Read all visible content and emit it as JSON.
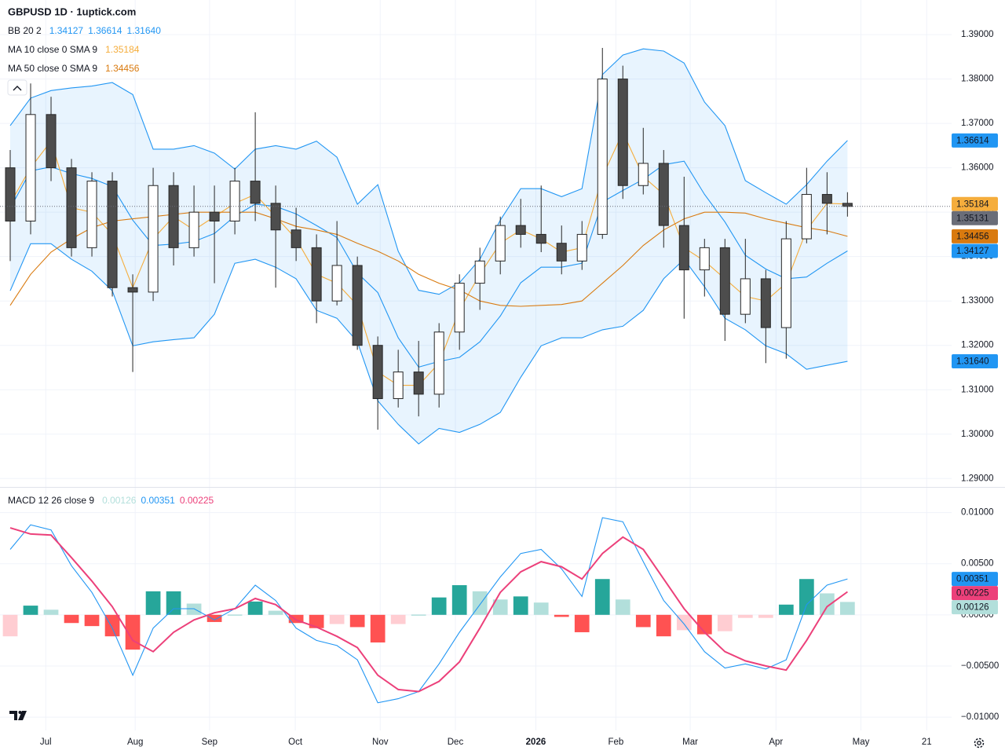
{
  "header": {
    "title": "GBPUSD 1D · 1uptick.com"
  },
  "chart_data": [
    {
      "type": "candlestick",
      "x": [
        2.5,
        7.5,
        12.5,
        17.5,
        22.5,
        27.5,
        32.5,
        37.5,
        42.5,
        47.5,
        52.5,
        57.5,
        62.5,
        67.5,
        72.5,
        77.5,
        82.5,
        87.5,
        92.5,
        97.5,
        102.5,
        107.5,
        112.5,
        117.5,
        122.5,
        127.5,
        132.5,
        137.5,
        142.5,
        147.5,
        152.5,
        157.5,
        162.5,
        167.5,
        172.5,
        177.5,
        182.5,
        187.5,
        192.5,
        197.5,
        202.5,
        207.5
      ],
      "xlim": [
        0,
        233
      ],
      "ylim": [
        1.2881,
        1.3978
      ],
      "yticks": [
        {
          "value": 1.29,
          "label": "1.29000"
        },
        {
          "value": 1.3,
          "label": "1.30000"
        },
        {
          "value": 1.31,
          "label": "1.31000"
        },
        {
          "value": 1.32,
          "label": "1.32000"
        },
        {
          "value": 1.33,
          "label": "1.33000"
        },
        {
          "value": 1.34,
          "label": "1.34000"
        },
        {
          "value": 1.35,
          "label": "1.35000"
        },
        {
          "value": 1.36,
          "label": "1.36000"
        },
        {
          "value": 1.37,
          "label": "1.37000"
        },
        {
          "value": 1.38,
          "label": "1.38000"
        },
        {
          "value": 1.39,
          "label": "1.39000"
        }
      ],
      "grid": true,
      "candles": {
        "open": [
          1.36,
          1.348,
          1.372,
          1.36,
          1.342,
          1.357,
          1.333,
          1.332,
          1.356,
          1.342,
          1.35,
          1.348,
          1.357,
          1.352,
          1.346,
          1.342,
          1.33,
          1.338,
          1.32,
          1.308,
          1.314,
          1.309,
          1.323,
          1.334,
          1.339,
          1.347,
          1.345,
          1.343,
          1.339,
          1.345,
          1.38,
          1.356,
          1.361,
          1.347,
          1.337,
          1.342,
          1.327,
          1.335,
          1.324,
          1.344,
          1.354,
          1.352
        ],
        "high": [
          1.364,
          1.379,
          1.376,
          1.362,
          1.359,
          1.359,
          1.336,
          1.36,
          1.359,
          1.356,
          1.356,
          1.36,
          1.3725,
          1.356,
          1.351,
          1.345,
          1.348,
          1.34,
          1.322,
          1.319,
          1.321,
          1.325,
          1.336,
          1.342,
          1.349,
          1.353,
          1.356,
          1.347,
          1.348,
          1.387,
          1.383,
          1.369,
          1.364,
          1.358,
          1.344,
          1.344,
          1.344,
          1.337,
          1.348,
          1.36,
          1.359,
          1.3545
        ],
        "low": [
          1.339,
          1.345,
          1.357,
          1.34,
          1.34,
          1.331,
          1.314,
          1.33,
          1.338,
          1.34,
          1.334,
          1.345,
          1.348,
          1.333,
          1.339,
          1.325,
          1.329,
          1.319,
          1.301,
          1.306,
          1.304,
          1.306,
          1.319,
          1.328,
          1.336,
          1.342,
          1.341,
          1.336,
          1.337,
          1.344,
          1.353,
          1.354,
          1.342,
          1.326,
          1.331,
          1.321,
          1.325,
          1.316,
          1.317,
          1.343,
          1.345,
          1.349
        ],
        "close": [
          1.348,
          1.372,
          1.36,
          1.342,
          1.357,
          1.333,
          1.332,
          1.356,
          1.342,
          1.35,
          1.348,
          1.357,
          1.352,
          1.346,
          1.342,
          1.33,
          1.338,
          1.32,
          1.308,
          1.314,
          1.309,
          1.323,
          1.334,
          1.339,
          1.347,
          1.345,
          1.343,
          1.339,
          1.345,
          1.38,
          1.356,
          1.361,
          1.347,
          1.337,
          1.342,
          1.327,
          1.335,
          1.324,
          1.344,
          1.354,
          1.352,
          1.35131
        ],
        "last_label": "1.35131",
        "up_color": "#ffffff",
        "down_color": "#4d4d4d",
        "outline": "#262626",
        "tag_color": "#6a6d78"
      },
      "series": [
        {
          "name": "BB 20 2",
          "color": "#2196f3",
          "fill": "#2196f3",
          "fill_between": [
            1,
            2
          ],
          "lines": [
            {
              "values": [
                1.3509,
                1.3593,
                1.3602,
                1.3587,
                1.3576,
                1.3558,
                1.3482,
                1.3425,
                1.3428,
                1.3434,
                1.3452,
                1.3491,
                1.3518,
                1.3513,
                1.3496,
                1.347,
                1.3443,
                1.3363,
                1.3319,
                1.3217,
                1.3151,
                1.3164,
                1.3173,
                1.3208,
                1.3266,
                1.3341,
                1.3376,
                1.3376,
                1.3385,
                1.3523,
                1.3549,
                1.3574,
                1.3607,
                1.3615,
                1.354,
                1.3478,
                1.3403,
                1.3372,
                1.335,
                1.3354,
                1.3385,
                1.34127
              ],
              "last_label": "1.34127"
            },
            {
              "values": [
                1.3695,
                1.3757,
                1.3774,
                1.378,
                1.3784,
                1.3792,
                1.3765,
                1.3642,
                1.3642,
                1.365,
                1.3633,
                1.3597,
                1.3642,
                1.365,
                1.3642,
                1.366,
                1.3624,
                1.3518,
                1.3562,
                1.3412,
                1.3324,
                1.3315,
                1.3341,
                1.3394,
                1.3482,
                1.3553,
                1.3553,
                1.3535,
                1.3553,
                1.381,
                1.3854,
                1.3868,
                1.3863,
                1.3836,
                1.3748,
                1.3695,
                1.3571,
                1.3544,
                1.3518,
                1.3562,
                1.3615,
                1.36614
              ],
              "last_label": "1.36614"
            },
            {
              "values": [
                1.3323,
                1.3429,
                1.3429,
                1.3394,
                1.3367,
                1.3323,
                1.3199,
                1.3208,
                1.3213,
                1.3217,
                1.327,
                1.3385,
                1.3394,
                1.3376,
                1.335,
                1.3279,
                1.3261,
                1.3208,
                1.3075,
                1.3022,
                1.2978,
                1.3013,
                1.3004,
                1.3022,
                1.3049,
                1.3128,
                1.3199,
                1.3217,
                1.3217,
                1.3235,
                1.3243,
                1.3279,
                1.335,
                1.3394,
                1.3332,
                1.3261,
                1.3235,
                1.3199,
                1.3181,
                1.3146,
                1.3155,
                1.3164
              ],
              "last_label": "1.31640"
            }
          ]
        },
        {
          "name": "MA 10 close 0 SMA 9",
          "color": "#f5ad3c",
          "lines": [
            {
              "values": [
                1.352,
                1.36,
                1.366,
                1.351,
                1.35,
                1.345,
                1.333,
                1.344,
                1.349,
                1.346,
                1.349,
                1.352,
                1.354,
                1.349,
                1.344,
                1.336,
                1.334,
                1.329,
                1.314,
                1.311,
                1.311,
                1.316,
                1.328,
                1.336,
                1.343,
                1.346,
                1.344,
                1.341,
                1.342,
                1.358,
                1.368,
                1.358,
                1.354,
                1.342,
                1.339,
                1.335,
                1.331,
                1.33,
                1.334,
                1.346,
                1.352,
                1.35184
              ],
              "last_label": "1.35184"
            }
          ]
        },
        {
          "name": "MA 50 close 0 SMA 9",
          "color": "#d97a0f",
          "lines": [
            {
              "values": [
                1.329,
                1.336,
                1.341,
                1.344,
                1.3465,
                1.348,
                1.3485,
                1.349,
                1.3495,
                1.35,
                1.35,
                1.35,
                1.35,
                1.3485,
                1.3468,
                1.346,
                1.345,
                1.343,
                1.3412,
                1.339,
                1.336,
                1.334,
                1.3325,
                1.33,
                1.329,
                1.3288,
                1.329,
                1.3292,
                1.33,
                1.334,
                1.338,
                1.3425,
                1.346,
                1.3485,
                1.35,
                1.35,
                1.3498,
                1.3485,
                1.3475,
                1.3465,
                1.3458,
                1.34456
              ],
              "last_label": "1.34456"
            }
          ]
        }
      ]
    },
    {
      "type": "macd",
      "x": [
        2.5,
        7.5,
        12.5,
        17.5,
        22.5,
        27.5,
        32.5,
        37.5,
        42.5,
        47.5,
        52.5,
        57.5,
        62.5,
        67.5,
        72.5,
        77.5,
        82.5,
        87.5,
        92.5,
        97.5,
        102.5,
        107.5,
        112.5,
        117.5,
        122.5,
        127.5,
        132.5,
        137.5,
        142.5,
        147.5,
        152.5,
        157.5,
        162.5,
        167.5,
        172.5,
        177.5,
        182.5,
        187.5,
        192.5,
        197.5,
        202.5,
        207.5
      ],
      "xlim": [
        0,
        233
      ],
      "xticks": [
        {
          "value": 11.2,
          "label": "Jul"
        },
        {
          "value": 33.1,
          "label": "Aug"
        },
        {
          "value": 51.3,
          "label": "Sep"
        },
        {
          "value": 72.3,
          "label": "Oct"
        },
        {
          "value": 93.1,
          "label": "Nov"
        },
        {
          "value": 111.5,
          "label": "Dec"
        },
        {
          "value": 131.2,
          "label": "2026",
          "bold": true
        },
        {
          "value": 150.8,
          "label": "Feb"
        },
        {
          "value": 169.0,
          "label": "Mar"
        },
        {
          "value": 190.0,
          "label": "Apr"
        },
        {
          "value": 210.8,
          "label": "May"
        },
        {
          "value": 226.9,
          "label": "21"
        }
      ],
      "ylim": [
        -0.0113,
        0.0125
      ],
      "yticks": [
        {
          "value": -0.01,
          "label": "−0.01000"
        },
        {
          "value": -0.005,
          "label": "−0.00500"
        },
        {
          "value": 0,
          "label": "0.00000"
        },
        {
          "value": 0.005,
          "label": "0.00500"
        },
        {
          "value": 0.01,
          "label": "0.01000"
        }
      ],
      "grid": true,
      "series": [
        {
          "name": "MACD 12 26 close 9",
          "lines": [
            {
              "style": "histogram",
              "colors": {
                "positive_rising": "#26a69a",
                "positive_falling": "#b2dfdb",
                "negative_falling": "#ff5252",
                "negative_rising": "#ffcdd2"
              },
              "values": [
                -0.0021,
                0.0009,
                0.0005,
                -0.0008,
                -0.0011,
                -0.0021,
                -0.0034,
                0.0023,
                0.0023,
                0.0011,
                -0.0007,
                0,
                0.0013,
                0.0004,
                -0.0008,
                -0.0013,
                -0.0009,
                -0.0012,
                -0.0027,
                -0.0009,
                0,
                0.0017,
                0.0029,
                0.0023,
                0.0015,
                0.0018,
                0.0012,
                -0.0002,
                -0.0017,
                0.0035,
                0.0015,
                -0.0012,
                -0.0021,
                -0.0015,
                -0.0019,
                -0.0016,
                -0.0003,
                -0.0003,
                0.001,
                0.0035,
                0.0021,
                0.00126
              ],
              "last_label": "0.00126"
            },
            {
              "style": "line",
              "color": "#2196f3",
              "values": [
                0.0064,
                0.0088,
                0.0083,
                0.0048,
                0.0022,
                -0.0013,
                -0.0059,
                -0.0013,
                0.0006,
                0.0006,
                -0.0005,
                0.0006,
                0.0029,
                0.0014,
                -0.0013,
                -0.0025,
                -0.003,
                -0.0044,
                -0.0086,
                -0.0082,
                -0.0075,
                -0.0048,
                -0.0017,
                0.001,
                0.0037,
                0.006,
                0.0064,
                0.0045,
                0.0018,
                0.0095,
                0.0091,
                0.0052,
                0.0014,
                -0.0009,
                -0.0036,
                -0.0052,
                -0.0048,
                -0.0053,
                -0.0044,
                0.001,
                0.0029,
                0.00351
              ],
              "last_label": "0.00351"
            },
            {
              "style": "line",
              "color": "#ec407a",
              "width": 2,
              "values": [
                0.0085,
                0.0079,
                0.0078,
                0.0056,
                0.0033,
                0.0008,
                -0.0025,
                -0.0036,
                -0.0017,
                -0.0005,
                0.0002,
                0.0006,
                0.0016,
                0.001,
                -0.0005,
                -0.0012,
                -0.0021,
                -0.0032,
                -0.0059,
                -0.0073,
                -0.0075,
                -0.0065,
                -0.0046,
                -0.0013,
                0.0022,
                0.0042,
                0.0052,
                0.0047,
                0.0035,
                0.006,
                0.0076,
                0.0064,
                0.0035,
                0.0006,
                -0.0017,
                -0.0036,
                -0.0045,
                -0.005,
                -0.0054,
                -0.0025,
                0.0008,
                0.00225
              ],
              "last_label": "0.00225"
            }
          ]
        }
      ]
    }
  ]
}
